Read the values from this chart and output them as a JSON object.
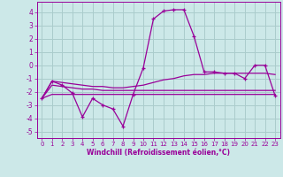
{
  "xlabel": "Windchill (Refroidissement éolien,°C)",
  "bg_color": "#cce8e8",
  "grid_color": "#aacccc",
  "line_color": "#990099",
  "x": [
    0,
    1,
    2,
    3,
    4,
    5,
    6,
    7,
    8,
    9,
    10,
    11,
    12,
    13,
    14,
    15,
    16,
    17,
    18,
    19,
    20,
    21,
    22,
    23
  ],
  "y_main": [
    -2.5,
    -1.2,
    -1.5,
    -2.1,
    -3.9,
    -2.5,
    -3.0,
    -3.3,
    -4.6,
    -2.2,
    -0.2,
    3.5,
    4.1,
    4.2,
    4.2,
    2.2,
    -0.5,
    -0.5,
    -0.6,
    -0.6,
    -1.0,
    0.0,
    0.0,
    -2.3
  ],
  "y_line2": [
    -2.5,
    -1.2,
    -1.3,
    -1.4,
    -1.5,
    -1.6,
    -1.6,
    -1.7,
    -1.7,
    -1.6,
    -1.5,
    -1.3,
    -1.1,
    -1.0,
    -0.8,
    -0.7,
    -0.7,
    -0.6,
    -0.6,
    -0.6,
    -0.6,
    -0.6,
    -0.6,
    -0.7
  ],
  "y_line3": [
    -2.5,
    -1.5,
    -1.6,
    -1.7,
    -1.8,
    -1.8,
    -1.9,
    -1.9,
    -1.9,
    -1.9,
    -1.9,
    -1.9,
    -1.9,
    -1.9,
    -1.9,
    -1.9,
    -1.9,
    -1.9,
    -1.9,
    -1.9,
    -1.9,
    -1.9,
    -1.9,
    -1.9
  ],
  "y_line4": [
    -2.5,
    -2.2,
    -2.2,
    -2.2,
    -2.2,
    -2.2,
    -2.2,
    -2.2,
    -2.2,
    -2.2,
    -2.2,
    -2.2,
    -2.2,
    -2.2,
    -2.2,
    -2.2,
    -2.2,
    -2.2,
    -2.2,
    -2.2,
    -2.2,
    -2.2,
    -2.2,
    -2.2
  ],
  "ylim": [
    -5.5,
    4.8
  ],
  "xlim": [
    -0.5,
    23.5
  ],
  "yticks": [
    -5,
    -4,
    -3,
    -2,
    -1,
    0,
    1,
    2,
    3,
    4
  ],
  "xticks": [
    0,
    1,
    2,
    3,
    4,
    5,
    6,
    7,
    8,
    9,
    10,
    11,
    12,
    13,
    14,
    15,
    16,
    17,
    18,
    19,
    20,
    21,
    22,
    23
  ],
  "xtick_labels": [
    "0",
    "1",
    "2",
    "3",
    "4",
    "5",
    "6",
    "7",
    "8",
    "9",
    "10",
    "11",
    "12",
    "13",
    "14",
    "15",
    "16",
    "17",
    "18",
    "19",
    "20",
    "21",
    "22",
    "23"
  ]
}
